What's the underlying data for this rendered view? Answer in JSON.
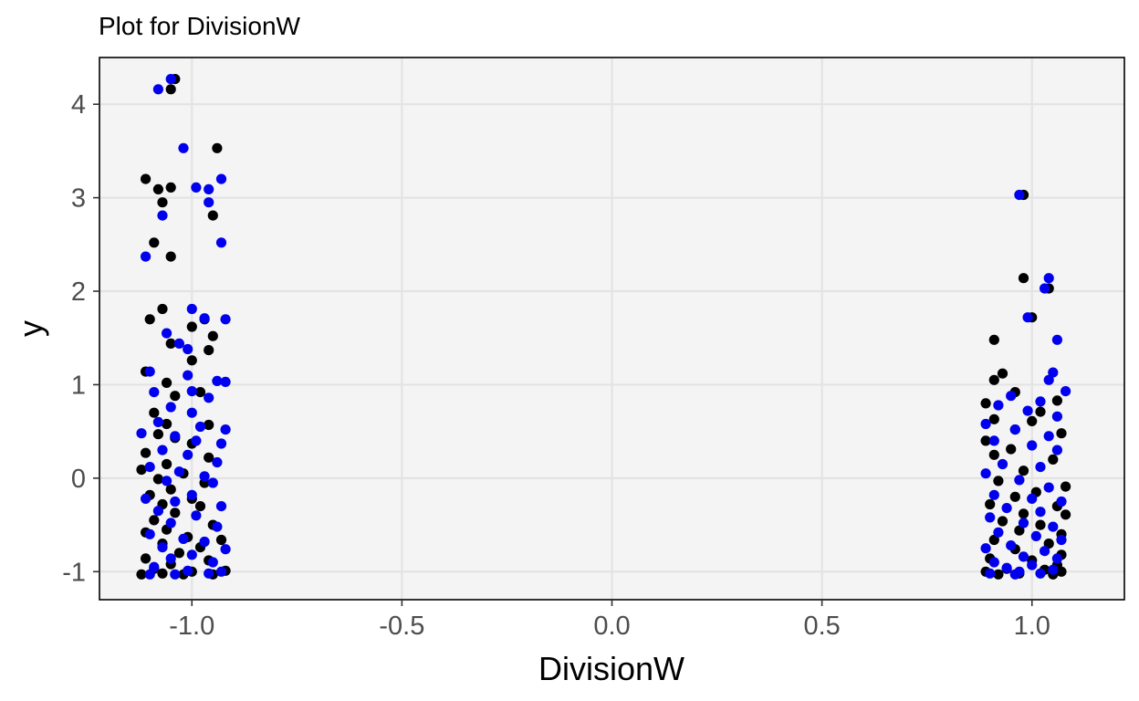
{
  "chart_data": {
    "type": "scatter",
    "title": "Plot for  DivisionW",
    "xlabel": "DivisionW",
    "ylabel": "y",
    "xlim": [
      -1.22,
      1.22
    ],
    "ylim": [
      -1.3,
      4.5
    ],
    "x_ticks": [
      -1.0,
      -0.5,
      0.0,
      0.5,
      1.0
    ],
    "x_tick_labels": [
      "-1.0",
      "-0.5",
      "0.0",
      "0.5",
      "1.0"
    ],
    "y_ticks": [
      -1,
      0,
      1,
      2,
      3,
      4
    ],
    "y_tick_labels": [
      "-1",
      "0",
      "1",
      "2",
      "3",
      "4"
    ],
    "grid": true,
    "legend": "none",
    "colors": {
      "panel_background": "#f4f4f4",
      "gridline": "#e3e3e3",
      "series_a": "#000000",
      "series_b": "#0000ee"
    },
    "series": [
      {
        "color": "#000000",
        "points": [
          [
            -1.04,
            4.27
          ],
          [
            -1.05,
            4.16
          ],
          [
            -0.94,
            3.53
          ],
          [
            -1.11,
            3.2
          ],
          [
            -1.08,
            3.09
          ],
          [
            -1.05,
            3.11
          ],
          [
            -1.07,
            2.95
          ],
          [
            -0.95,
            2.81
          ],
          [
            -1.09,
            2.52
          ],
          [
            -1.05,
            2.37
          ],
          [
            -1.07,
            1.81
          ],
          [
            -1.1,
            1.7
          ],
          [
            -0.97,
            1.7
          ],
          [
            -1.0,
            1.62
          ],
          [
            -0.95,
            1.52
          ],
          [
            -0.96,
            1.37
          ],
          [
            -1.05,
            1.44
          ],
          [
            -1.0,
            1.26
          ],
          [
            -1.11,
            1.14
          ],
          [
            -1.06,
            1.02
          ],
          [
            -0.98,
            0.92
          ],
          [
            -1.04,
            0.88
          ],
          [
            -1.09,
            0.7
          ],
          [
            -1.06,
            0.58
          ],
          [
            -0.96,
            0.57
          ],
          [
            -1.08,
            0.47
          ],
          [
            -1.04,
            0.43
          ],
          [
            -1.0,
            0.37
          ],
          [
            -1.11,
            0.27
          ],
          [
            -0.96,
            0.22
          ],
          [
            -1.06,
            0.15
          ],
          [
            -1.12,
            0.09
          ],
          [
            -1.02,
            0.05
          ],
          [
            -1.08,
            -0.01
          ],
          [
            -0.97,
            -0.05
          ],
          [
            -1.05,
            -0.12
          ],
          [
            -1.1,
            -0.18
          ],
          [
            -1.0,
            -0.22
          ],
          [
            -1.07,
            -0.28
          ],
          [
            -0.98,
            -0.3
          ],
          [
            -1.04,
            -0.37
          ],
          [
            -1.09,
            -0.45
          ],
          [
            -0.95,
            -0.5
          ],
          [
            -1.06,
            -0.55
          ],
          [
            -1.11,
            -0.58
          ],
          [
            -1.01,
            -0.63
          ],
          [
            -0.93,
            -0.66
          ],
          [
            -1.07,
            -0.7
          ],
          [
            -0.98,
            -0.74
          ],
          [
            -1.03,
            -0.8
          ],
          [
            -1.11,
            -0.86
          ],
          [
            -0.96,
            -0.88
          ],
          [
            -1.05,
            -0.92
          ],
          [
            -1.09,
            -0.97
          ],
          [
            -1.0,
            -1.0
          ],
          [
            -0.92,
            -0.99
          ],
          [
            -1.12,
            -1.03
          ],
          [
            -1.02,
            -1.03
          ],
          [
            -0.95,
            -1.03
          ],
          [
            -1.07,
            -1.02
          ],
          [
            0.98,
            3.03
          ],
          [
            0.98,
            2.14
          ],
          [
            1.04,
            2.03
          ],
          [
            1.0,
            1.72
          ],
          [
            0.91,
            1.48
          ],
          [
            0.93,
            1.12
          ],
          [
            0.91,
            1.05
          ],
          [
            0.89,
            0.8
          ],
          [
            0.96,
            0.92
          ],
          [
            1.06,
            0.83
          ],
          [
            1.02,
            0.71
          ],
          [
            0.91,
            0.63
          ],
          [
            1.0,
            0.61
          ],
          [
            1.07,
            0.48
          ],
          [
            0.96,
            0.52
          ],
          [
            0.89,
            0.4
          ],
          [
            0.95,
            0.31
          ],
          [
            0.91,
            0.25
          ],
          [
            1.05,
            0.2
          ],
          [
            0.98,
            0.08
          ],
          [
            1.08,
            -0.09
          ],
          [
            0.92,
            -0.03
          ],
          [
            1.01,
            -0.15
          ],
          [
            0.96,
            -0.2
          ],
          [
            0.9,
            -0.28
          ],
          [
            1.06,
            -0.3
          ],
          [
            0.98,
            -0.38
          ],
          [
            1.08,
            -0.39
          ],
          [
            0.93,
            -0.46
          ],
          [
            1.02,
            -0.5
          ],
          [
            0.97,
            -0.56
          ],
          [
            1.07,
            -0.6
          ],
          [
            0.91,
            -0.66
          ],
          [
            1.04,
            -0.7
          ],
          [
            0.96,
            -0.76
          ],
          [
            1.07,
            -0.82
          ],
          [
            0.9,
            -0.86
          ],
          [
            1.0,
            -0.88
          ],
          [
            1.06,
            -0.93
          ],
          [
            0.94,
            -0.97
          ],
          [
            1.03,
            -0.98
          ],
          [
            0.89,
            -1.0
          ],
          [
            1.07,
            -1.0
          ],
          [
            0.97,
            -1.02
          ],
          [
            1.05,
            -1.03
          ],
          [
            0.92,
            -1.03
          ]
        ]
      },
      {
        "color": "#0000ee",
        "points": [
          [
            -1.05,
            4.27
          ],
          [
            -1.08,
            4.16
          ],
          [
            -1.02,
            3.53
          ],
          [
            -0.93,
            3.2
          ],
          [
            -0.99,
            3.11
          ],
          [
            -0.96,
            3.09
          ],
          [
            -0.96,
            2.95
          ],
          [
            -1.07,
            2.81
          ],
          [
            -0.93,
            2.52
          ],
          [
            -1.11,
            2.37
          ],
          [
            -1.0,
            1.81
          ],
          [
            -0.97,
            1.71
          ],
          [
            -0.92,
            1.7
          ],
          [
            -1.06,
            1.55
          ],
          [
            -1.03,
            1.44
          ],
          [
            -1.01,
            1.38
          ],
          [
            -1.1,
            1.14
          ],
          [
            -1.01,
            1.1
          ],
          [
            -0.94,
            1.04
          ],
          [
            -0.92,
            1.03
          ],
          [
            -1.0,
            0.93
          ],
          [
            -1.09,
            0.92
          ],
          [
            -0.96,
            0.86
          ],
          [
            -1.05,
            0.76
          ],
          [
            -1.0,
            0.7
          ],
          [
            -1.08,
            0.6
          ],
          [
            -0.98,
            0.55
          ],
          [
            -0.92,
            0.52
          ],
          [
            -1.12,
            0.48
          ],
          [
            -1.04,
            0.45
          ],
          [
            -0.99,
            0.4
          ],
          [
            -0.93,
            0.37
          ],
          [
            -1.07,
            0.3
          ],
          [
            -1.01,
            0.25
          ],
          [
            -0.94,
            0.17
          ],
          [
            -1.1,
            0.12
          ],
          [
            -1.03,
            0.07
          ],
          [
            -0.97,
            0.02
          ],
          [
            -1.06,
            -0.03
          ],
          [
            -0.95,
            -0.05
          ],
          [
            -1.11,
            -0.22
          ],
          [
            -1.0,
            -0.18
          ],
          [
            -1.04,
            -0.25
          ],
          [
            -0.93,
            -0.3
          ],
          [
            -1.08,
            -0.35
          ],
          [
            -0.99,
            -0.4
          ],
          [
            -1.05,
            -0.48
          ],
          [
            -0.94,
            -0.52
          ],
          [
            -1.1,
            -0.6
          ],
          [
            -1.02,
            -0.65
          ],
          [
            -0.97,
            -0.68
          ],
          [
            -1.07,
            -0.74
          ],
          [
            -0.92,
            -0.76
          ],
          [
            -1.0,
            -0.82
          ],
          [
            -1.05,
            -0.86
          ],
          [
            -0.95,
            -0.9
          ],
          [
            -1.09,
            -0.95
          ],
          [
            -1.01,
            -0.99
          ],
          [
            -0.96,
            -1.02
          ],
          [
            -1.04,
            -1.03
          ],
          [
            -1.1,
            -1.03
          ],
          [
            -0.93,
            -1.0
          ],
          [
            0.97,
            3.03
          ],
          [
            1.04,
            2.14
          ],
          [
            1.03,
            2.03
          ],
          [
            0.99,
            1.72
          ],
          [
            1.06,
            1.48
          ],
          [
            1.05,
            1.13
          ],
          [
            1.04,
            1.05
          ],
          [
            1.08,
            0.93
          ],
          [
            0.95,
            0.88
          ],
          [
            1.02,
            0.82
          ],
          [
            0.92,
            0.78
          ],
          [
            0.99,
            0.72
          ],
          [
            1.06,
            0.66
          ],
          [
            0.89,
            0.58
          ],
          [
            0.96,
            0.52
          ],
          [
            1.04,
            0.45
          ],
          [
            0.91,
            0.4
          ],
          [
            1.0,
            0.35
          ],
          [
            1.06,
            0.3
          ],
          [
            0.93,
            0.15
          ],
          [
            1.02,
            0.12
          ],
          [
            0.89,
            0.05
          ],
          [
            0.97,
            -0.02
          ],
          [
            1.04,
            -0.1
          ],
          [
            0.91,
            -0.18
          ],
          [
            1.0,
            -0.22
          ],
          [
            1.07,
            -0.25
          ],
          [
            0.94,
            -0.32
          ],
          [
            1.02,
            -0.36
          ],
          [
            0.9,
            -0.42
          ],
          [
            0.98,
            -0.48
          ],
          [
            1.05,
            -0.52
          ],
          [
            0.92,
            -0.58
          ],
          [
            1.01,
            -0.62
          ],
          [
            1.07,
            -0.66
          ],
          [
            0.95,
            -0.72
          ],
          [
            0.89,
            -0.75
          ],
          [
            1.03,
            -0.78
          ],
          [
            0.98,
            -0.84
          ],
          [
            1.06,
            -0.86
          ],
          [
            0.91,
            -0.9
          ],
          [
            1.0,
            -0.93
          ],
          [
            0.94,
            -0.96
          ],
          [
            1.05,
            -0.98
          ],
          [
            0.97,
            -1.0
          ],
          [
            1.02,
            -1.02
          ],
          [
            0.9,
            -1.02
          ],
          [
            0.96,
            -1.03
          ]
        ]
      }
    ]
  }
}
